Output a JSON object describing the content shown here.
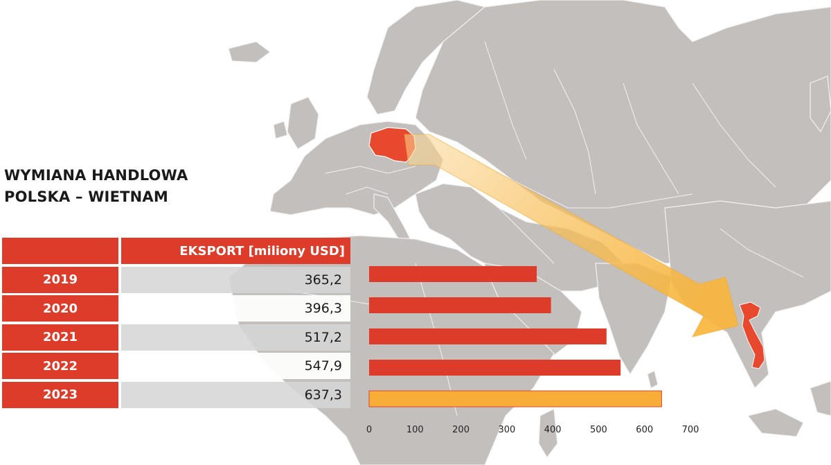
{
  "title_lines": [
    "WYMIANA HANDLOWA",
    "POLSKA – WIETNAM"
  ],
  "table": {
    "header": "EKSPORT [miliony USD]",
    "rows": [
      {
        "year": "2019",
        "value": "365,2"
      },
      {
        "year": "2020",
        "value": "396,3"
      },
      {
        "year": "2021",
        "value": "517,2"
      },
      {
        "year": "2022",
        "value": "547,9"
      },
      {
        "year": "2023",
        "value": "637,3"
      }
    ]
  },
  "colors": {
    "accent_red": "#dd3c2a",
    "highlight_bar": "#f9ad39",
    "map_land": "#c3bfbc",
    "map_border": "#f2f2f2",
    "arrow": "#f7b53d"
  },
  "chart_data": {
    "type": "bar",
    "orientation": "horizontal",
    "categories": [
      "2019",
      "2020",
      "2021",
      "2022",
      "2023"
    ],
    "values": [
      365.2,
      396.3,
      517.2,
      547.9,
      637.3
    ],
    "highlighted_category": "2023",
    "xlim": [
      0,
      700
    ],
    "x_ticks": [
      "0",
      "100",
      "200",
      "300",
      "400",
      "500",
      "600",
      "700"
    ],
    "legend": "none",
    "grid": false
  },
  "map": {
    "highlighted_countries": [
      "poland-icon",
      "vietnam-icon"
    ],
    "arrow": "trade-route-arrow-icon"
  }
}
